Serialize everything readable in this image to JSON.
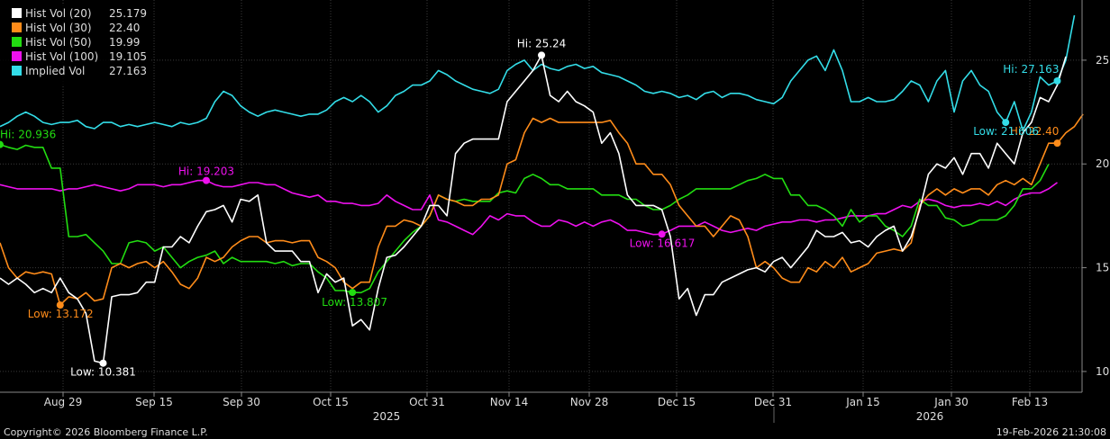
{
  "chart_data": {
    "type": "line",
    "x_ticks": [
      "Aug 29",
      "Sep 15",
      "Sep 30",
      "Oct 15",
      "Oct 31",
      "Nov 14",
      "Nov 28",
      "Dec 15",
      "Dec 31",
      "Jan 15",
      "Jan 30",
      "Feb 13"
    ],
    "years": [
      "2025",
      "2026"
    ],
    "y_ticks": [
      10,
      15,
      20,
      25
    ],
    "ylim": [
      9.0,
      27.9
    ],
    "grid": true,
    "legend_position": "top-left",
    "series": [
      {
        "name": "Hist Vol (20)",
        "last": "25.179",
        "color": "#ffffff",
        "values": [
          14.5,
          14.2,
          14.5,
          14.2,
          13.8,
          14.0,
          13.8,
          14.5,
          13.8,
          13.5,
          12.8,
          10.5,
          10.4,
          13.6,
          13.7,
          13.7,
          13.8,
          14.3,
          14.3,
          16.0,
          16.0,
          16.5,
          16.2,
          17.0,
          17.7,
          17.8,
          18.0,
          17.2,
          18.3,
          18.2,
          18.5,
          16.2,
          15.8,
          15.8,
          15.8,
          15.3,
          15.3,
          13.8,
          14.7,
          14.3,
          14.5,
          12.2,
          12.5,
          12.0,
          14.0,
          15.5,
          15.6,
          16.0,
          16.5,
          17.0,
          18.0,
          18.0,
          17.5,
          20.5,
          21.0,
          21.2,
          21.2,
          21.2,
          21.2,
          23.0,
          23.5,
          24.0,
          24.5,
          25.24,
          23.3,
          23.0,
          23.5,
          23.0,
          22.8,
          22.5,
          21.0,
          21.5,
          20.5,
          18.5,
          18.0,
          18.0,
          18.0,
          17.8,
          16.5,
          13.5,
          14.0,
          12.7,
          13.7,
          13.7,
          14.3,
          14.5,
          14.7,
          14.9,
          15.0,
          14.8,
          15.3,
          15.5,
          15.0,
          15.5,
          16.0,
          16.8,
          16.5,
          16.5,
          16.7,
          16.2,
          16.3,
          16.0,
          16.5,
          16.8,
          17.0,
          15.8,
          16.5,
          17.8,
          19.5,
          20.0,
          19.8,
          20.3,
          19.5,
          20.5,
          20.5,
          19.8,
          21.0,
          20.5,
          20.0,
          21.5,
          22.0,
          23.2,
          23.0,
          23.8,
          25.179
        ]
      },
      {
        "name": "Hist Vol (30)",
        "last": "22.40",
        "color": "#ff8c1a",
        "values": [
          16.2,
          15.0,
          14.5,
          14.8,
          14.7,
          14.8,
          14.7,
          13.2,
          13.6,
          13.5,
          13.8,
          13.4,
          13.5,
          15.0,
          15.2,
          15.0,
          15.2,
          15.3,
          15.0,
          15.3,
          14.8,
          14.2,
          14.0,
          14.5,
          15.5,
          15.3,
          15.5,
          16.0,
          16.3,
          16.5,
          16.5,
          16.2,
          16.3,
          16.3,
          16.2,
          16.3,
          16.3,
          15.5,
          15.3,
          15.0,
          14.3,
          14.0,
          14.3,
          14.3,
          16.0,
          17.0,
          17.0,
          17.3,
          17.2,
          17.0,
          17.5,
          18.5,
          18.3,
          18.2,
          18.0,
          18.0,
          18.3,
          18.3,
          18.5,
          20.0,
          20.2,
          21.5,
          22.2,
          22.0,
          22.2,
          22.0,
          22.0,
          22.0,
          22.0,
          22.0,
          22.0,
          22.1,
          21.5,
          21.0,
          20.0,
          20.0,
          19.5,
          19.5,
          19.0,
          18.0,
          17.5,
          17.0,
          17.0,
          16.5,
          17.0,
          17.5,
          17.3,
          16.5,
          15.0,
          15.3,
          15.0,
          14.5,
          14.3,
          14.3,
          15.0,
          14.8,
          15.3,
          15.0,
          15.5,
          14.8,
          15.0,
          15.2,
          15.7,
          15.8,
          15.9,
          15.8,
          16.2,
          18.0,
          18.5,
          18.8,
          18.5,
          18.8,
          18.6,
          18.8,
          18.8,
          18.5,
          19.0,
          19.2,
          19.0,
          19.3,
          19.0,
          20.0,
          21.0,
          21.0,
          21.5,
          21.8,
          22.4
        ]
      },
      {
        "name": "Hist Vol (50)",
        "last": "19.99",
        "color": "#22dd11",
        "values": [
          20.936,
          20.8,
          20.7,
          20.9,
          20.8,
          20.8,
          19.8,
          19.8,
          16.5,
          16.5,
          16.6,
          16.2,
          15.8,
          15.2,
          15.2,
          16.2,
          16.3,
          16.2,
          15.8,
          16.0,
          15.5,
          15.0,
          15.3,
          15.5,
          15.6,
          15.8,
          15.2,
          15.5,
          15.3,
          15.3,
          15.3,
          15.3,
          15.2,
          15.3,
          15.1,
          15.2,
          15.2,
          14.8,
          14.5,
          13.9,
          13.9,
          13.807,
          13.8,
          14.0,
          14.8,
          15.3,
          15.8,
          16.3,
          16.7,
          17.0,
          17.5,
          18.5,
          18.3,
          18.2,
          18.3,
          18.2,
          18.2,
          18.2,
          18.6,
          18.7,
          18.6,
          19.3,
          19.5,
          19.3,
          19.0,
          19.0,
          18.8,
          18.8,
          18.8,
          18.8,
          18.5,
          18.5,
          18.5,
          18.3,
          18.3,
          18.0,
          17.8,
          17.8,
          18.0,
          18.3,
          18.5,
          18.8,
          18.8,
          18.8,
          18.8,
          18.8,
          19.0,
          19.2,
          19.3,
          19.5,
          19.3,
          19.3,
          18.5,
          18.5,
          18.0,
          18.0,
          17.8,
          17.5,
          17.0,
          17.8,
          17.2,
          17.5,
          17.5,
          17.0,
          16.8,
          16.5,
          17.0,
          18.3,
          18.0,
          18.0,
          17.4,
          17.3,
          17.0,
          17.1,
          17.3,
          17.3,
          17.3,
          17.5,
          18.0,
          18.8,
          18.8,
          19.2,
          19.99
        ]
      },
      {
        "name": "Hist Vol (100)",
        "last": "19.105",
        "color": "#ee11ee",
        "values": [
          19.0,
          18.9,
          18.8,
          18.8,
          18.8,
          18.8,
          18.8,
          18.7,
          18.8,
          18.8,
          18.9,
          19.0,
          18.9,
          18.8,
          18.7,
          18.8,
          19.0,
          19.0,
          19.0,
          18.9,
          19.0,
          19.0,
          19.1,
          19.2,
          19.203,
          19.0,
          18.9,
          18.9,
          19.0,
          19.1,
          19.1,
          19.0,
          19.0,
          18.8,
          18.6,
          18.5,
          18.4,
          18.5,
          18.2,
          18.2,
          18.1,
          18.1,
          18.0,
          18.0,
          18.1,
          18.5,
          18.2,
          18.0,
          17.8,
          17.8,
          18.5,
          17.3,
          17.2,
          17.0,
          16.8,
          16.6,
          17.0,
          17.5,
          17.3,
          17.6,
          17.5,
          17.5,
          17.2,
          17.0,
          17.0,
          17.3,
          17.2,
          17.0,
          17.2,
          17.0,
          17.2,
          17.3,
          17.1,
          16.8,
          16.8,
          16.7,
          16.6,
          16.617,
          16.8,
          17.0,
          17.0,
          17.0,
          17.2,
          17.0,
          16.8,
          16.7,
          16.8,
          16.9,
          16.8,
          17.0,
          17.1,
          17.2,
          17.2,
          17.3,
          17.3,
          17.2,
          17.3,
          17.3,
          17.4,
          17.5,
          17.5,
          17.5,
          17.6,
          17.6,
          17.8,
          18.0,
          17.9,
          18.2,
          18.3,
          18.2,
          18.0,
          17.9,
          18.0,
          18.0,
          18.1,
          18.0,
          18.2,
          18.0,
          18.3,
          18.5,
          18.6,
          18.6,
          18.8,
          19.105
        ]
      },
      {
        "name": "Implied Vol",
        "last": "27.163",
        "color": "#33dde8",
        "values": [
          21.8,
          22.0,
          22.3,
          22.5,
          22.3,
          22.0,
          21.9,
          22.0,
          22.0,
          22.1,
          21.8,
          21.7,
          22.0,
          22.0,
          21.8,
          21.9,
          21.8,
          21.9,
          22.0,
          21.9,
          21.8,
          22.0,
          21.9,
          22.0,
          22.2,
          23.0,
          23.5,
          23.3,
          22.8,
          22.5,
          22.3,
          22.5,
          22.6,
          22.5,
          22.4,
          22.3,
          22.4,
          22.4,
          22.6,
          23.0,
          23.2,
          23.0,
          23.3,
          23.0,
          22.5,
          22.8,
          23.3,
          23.5,
          23.8,
          23.8,
          24.0,
          24.5,
          24.3,
          24.0,
          23.8,
          23.6,
          23.5,
          23.4,
          23.6,
          24.5,
          24.8,
          25.0,
          24.5,
          24.8,
          24.6,
          24.5,
          24.7,
          24.8,
          24.6,
          24.7,
          24.4,
          24.3,
          24.2,
          24.0,
          23.8,
          23.5,
          23.4,
          23.5,
          23.4,
          23.2,
          23.3,
          23.1,
          23.4,
          23.5,
          23.2,
          23.4,
          23.4,
          23.3,
          23.1,
          23.0,
          22.9,
          23.2,
          24.0,
          24.5,
          25.0,
          25.2,
          24.5,
          25.5,
          24.5,
          23.0,
          23.0,
          23.2,
          23.0,
          23.0,
          23.1,
          23.5,
          24.0,
          23.8,
          23.0,
          24.0,
          24.5,
          22.5,
          24.0,
          24.5,
          23.8,
          23.5,
          22.5,
          22.0,
          23.0,
          21.606,
          22.5,
          24.2,
          23.8,
          24.0,
          25.0,
          27.163
        ]
      }
    ],
    "annotations": [
      {
        "series": "Hist Vol (20)",
        "kind": "hi",
        "text": "Hi: 25.24",
        "index": 63
      },
      {
        "series": "Hist Vol (20)",
        "kind": "low",
        "text": "Low: 10.381",
        "index": 12
      },
      {
        "series": "Hist Vol (30)",
        "kind": "hi",
        "text": "Hi: 22.40",
        "index": 123
      },
      {
        "series": "Hist Vol (30)",
        "kind": "low",
        "text": "Low: 13.172",
        "index": 7
      },
      {
        "series": "Hist Vol (50)",
        "kind": "hi",
        "text": "Hi: 20.936",
        "index": 0
      },
      {
        "series": "Hist Vol (50)",
        "kind": "low",
        "text": "Low: 13.807",
        "index": 41
      },
      {
        "series": "Hist Vol (100)",
        "kind": "hi",
        "text": "Hi: 19.203",
        "index": 24
      },
      {
        "series": "Hist Vol (100)",
        "kind": "low",
        "text": "Low: 16.617",
        "index": 77
      },
      {
        "series": "Implied Vol",
        "kind": "hi",
        "text": "Hi: 27.163",
        "index": 123
      },
      {
        "series": "Implied Vol",
        "kind": "low",
        "text": "Low: 21.606",
        "index": 117
      }
    ]
  },
  "footer": {
    "copyright": "Copyright© 2026 Bloomberg Finance L.P.",
    "timestamp": "19-Feb-2026 21:30:08"
  }
}
